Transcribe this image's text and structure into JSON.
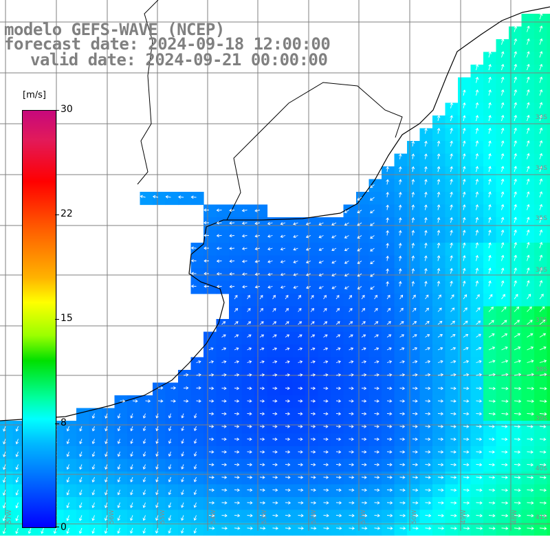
{
  "title": {
    "line1": "modelo GEFS-WAVE (NCEP)",
    "line2": "forecast date: 2024-09-18 12:00:00",
    "line3": "valid date: 2024-09-21 00:00:00"
  },
  "colorbar": {
    "unit": "[m/s]",
    "ticks": [
      "30",
      "22",
      "15",
      "8",
      "0"
    ],
    "range": [
      0,
      30
    ],
    "colors": {
      "low": "#0000ff",
      "mid_low": "#00ffff",
      "mid": "#00e000",
      "mid_high": "#ffff00",
      "high": "#ff0000",
      "max": "#c7087c"
    }
  },
  "map": {
    "variable": "wind speed and direction",
    "lat_labels": [
      "33S",
      "34S",
      "35S",
      "36S",
      "37S",
      "38S",
      "39S",
      "40S",
      "41S"
    ],
    "lon_labels": [
      "57W",
      "56W",
      "55W",
      "54W",
      "53W",
      "52W",
      "51W",
      "50W",
      "49W",
      "48W",
      "47W"
    ],
    "land_color": "#ffffff",
    "grid_color": "#7f7f7f",
    "coast_color": "#000000",
    "arrow_color": "#ffffff"
  }
}
